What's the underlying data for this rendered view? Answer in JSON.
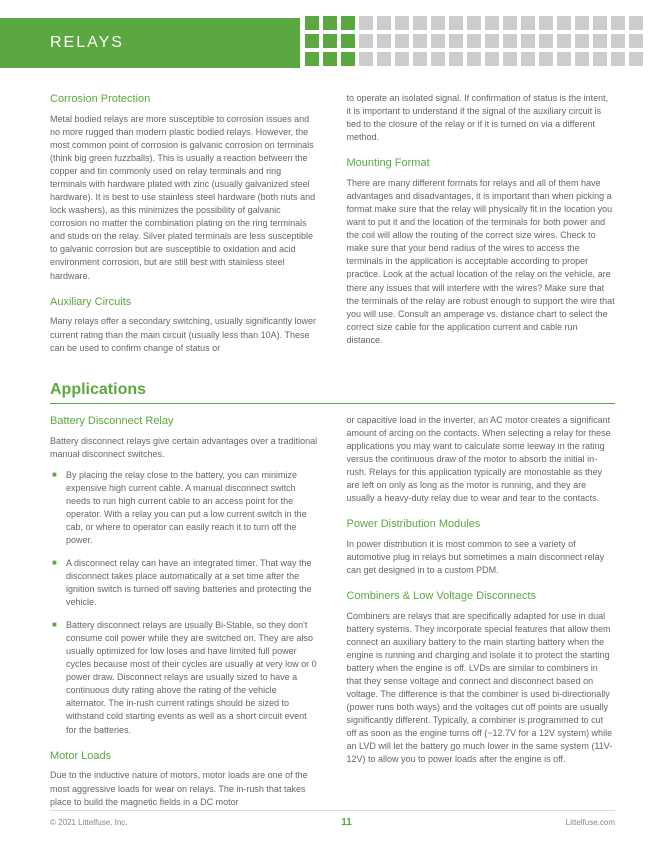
{
  "header": {
    "title": "RELAYS"
  },
  "squares": {
    "green_count": 3,
    "grey_count": 16,
    "rows": 3
  },
  "section_a": {
    "left": {
      "h1": "Corrosion Protection",
      "p1": "Metal bodied relays are more susceptible to corrosion issues and no more rugged than modern plastic bodied relays. However, the most common point of corrosion is galvanic corrosion on terminals (think big green fuzzballs). This is usually a reaction between the copper and tin commonly used on relay terminals and ring terminals with hardware plated with zinc (usually galvanized steel hardware). It is best to use stainless steel hardware (both nuts and lock washers), as this minimizes the possibility of galvanic corrosion no matter the combination plating on the ring terminals and studs on the relay. Silver plated terminals are less susceptible to galvanic corrosion but are susceptible to oxidation and acid environment corrosion, but are still best with stainless steel hardware.",
      "h2": "Auxiliary Circuits",
      "p2": "Many relays offer a secondary switching, usually significantly lower current rating than the main circuit (usually less than 10A). These can be used to confirm change of status or"
    },
    "right": {
      "p1": "to operate an isolated signal. If confirmation of status is the intent, it is important to understand if the signal of the auxiliary circuit is tied to the closure of the relay or if it is turned on via a different method.",
      "h1": "Mounting Format",
      "p2": "There are many different formats for relays and all of them have advantages and disadvantages, it is important than when picking a format make sure that the relay will physically fit in the location you want to put it and the location of the terminals for both power and the coil will allow the routing of the correct size wires. Check to make sure that your bend radius of the wires to access the terminals in the application is acceptable according to proper practice. Look at the actual location of the relay on the vehicle, are there any issues that will interfere with the wires? Make sure that the terminals of the relay are robust enough to support the wire that you will use. Consult an amperage vs. distance chart to select the correct size cable for the application current and cable run distance."
    }
  },
  "apps_heading": "Applications",
  "section_b": {
    "left": {
      "h1": "Battery Disconnect Relay",
      "p1": "Battery disconnect relays give certain advantages over a traditional manual disconnect switches.",
      "bullets": [
        "By placing the relay close to the battery, you can minimize expensive high current cable. A manual disconnect switch needs to run high current cable to an access point for the operator. With a relay you can put a low current switch in the cab, or where to operator can easily reach it to turn off the power.",
        "A disconnect relay can have an integrated timer. That way the disconnect takes place automatically at a set time after the ignition switch is turned off saving batteries and protecting the vehicle.",
        "Battery disconnect relays are usually Bi-Stable, so they don't consume coil power while they are switched on. They are also usually optimized for low loses and have limited full power cycles because most of their cycles are usually at very low or 0 power draw. Disconnect relays are usually sized to have a continuous duty rating above the rating of the vehicle alternator. The in-rush current ratings should be sized to withstand cold starting events as well as a short circuit event for the batteries."
      ],
      "h2": "Motor Loads",
      "p2": "Due to the inductive nature of motors, motor loads are one of the most aggressive loads for wear on relays. The in-rush that takes place to build the magnetic fields in a DC motor"
    },
    "right": {
      "p1": "or capacitive load in the inverter, an AC motor creates a significant amount of arcing on the contacts. When selecting a relay for these applications you may want to calculate some leeway in the rating versus the continuous draw of the motor to absorb the initial in-rush. Relays for this application typically are monostable as they are left on only as long as the motor is running, and they are usually a heavy-duty relay due to wear and tear to the contacts.",
      "h1": "Power Distribution Modules",
      "p2": "In power distribution it is most common to see a variety of automotive plug in relays but sometimes a main disconnect relay can get designed in to a custom PDM.",
      "h2": "Combiners & Low Voltage Disconnects",
      "p3": "Combiners are relays that are specifically adapted for use in dual battery systems. They incorporate special features that allow them connect an auxiliary battery to the main starting battery when the engine is running and charging and isolate it to protect the starting battery when the engine is off. LVDs are similar to combiners in that they sense voltage and connect and disconnect based on voltage. The difference is that the combiner is used bi-directionally (power runs both ways) and the voltages cut off points are usually significantly different. Typically, a combiner is programmed to cut off as soon as the engine turns off (~12.7V for a 12V system) while an LVD will let the battery go much lower in the same system (11V-12V) to allow you to power loads after the engine is off."
    }
  },
  "footer": {
    "left": "© 2021 Littelfuse, Inc.",
    "page": "11",
    "right": "Littelfuse.com"
  }
}
